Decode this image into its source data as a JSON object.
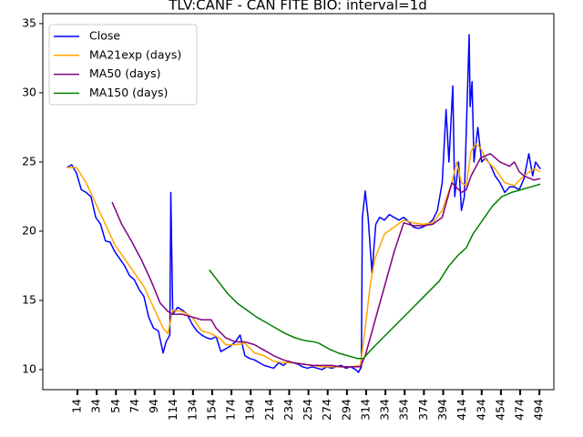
{
  "chart_data": {
    "type": "line",
    "title": "TLV:CANF - CAN FITE BIO: interval=1d",
    "xlim": [
      -22,
      509
    ],
    "ylim": [
      8.55,
      35.72
    ],
    "xticks": [
      14,
      34,
      54,
      74,
      94,
      114,
      134,
      154,
      174,
      194,
      214,
      234,
      254,
      274,
      294,
      314,
      334,
      354,
      374,
      394,
      414,
      434,
      454,
      474,
      494
    ],
    "yticks": [
      10,
      15,
      20,
      25,
      30,
      35
    ],
    "legend": "upper left",
    "series": [
      {
        "name": "Close",
        "color": "#0000ff",
        "x": [
          3,
          8,
          13,
          18,
          23,
          28,
          33,
          38,
          43,
          48,
          53,
          58,
          63,
          68,
          73,
          78,
          83,
          88,
          93,
          98,
          103,
          106,
          110,
          111,
          113,
          118,
          123,
          128,
          133,
          138,
          143,
          148,
          153,
          158,
          163,
          168,
          173,
          178,
          183,
          188,
          193,
          198,
          203,
          208,
          213,
          218,
          223,
          228,
          233,
          238,
          243,
          248,
          253,
          258,
          263,
          268,
          273,
          278,
          283,
          288,
          293,
          298,
          303,
          306,
          309,
          310,
          313,
          316,
          320,
          324,
          328,
          333,
          338,
          343,
          348,
          353,
          358,
          363,
          368,
          373,
          378,
          383,
          388,
          393,
          397,
          400,
          404,
          406,
          410,
          413,
          416,
          421,
          422,
          424,
          426,
          430,
          434,
          438,
          443,
          448,
          453,
          458,
          463,
          468,
          473,
          478,
          483,
          487,
          490,
          495
        ],
        "values": [
          24.6,
          24.8,
          24.2,
          23,
          22.8,
          22.5,
          21,
          20.5,
          19.3,
          19.2,
          18.5,
          18,
          17.5,
          16.8,
          16.5,
          15.8,
          15.3,
          13.8,
          13,
          12.8,
          11.2,
          12,
          12.5,
          22.8,
          14,
          14.5,
          14.3,
          14,
          13.3,
          12.8,
          12.5,
          12.3,
          12.2,
          12.4,
          11.3,
          11.5,
          11.7,
          12,
          12.5,
          11,
          10.8,
          10.7,
          10.5,
          10.3,
          10.2,
          10.1,
          10.5,
          10.3,
          10.6,
          10.5,
          10.4,
          10.2,
          10.1,
          10.2,
          10.1,
          10,
          10.2,
          10.1,
          10.2,
          10.3,
          10.1,
          10.2,
          10,
          9.8,
          10.2,
          21,
          22.9,
          21,
          17,
          20.5,
          21,
          20.8,
          21.2,
          21,
          20.8,
          21,
          20.7,
          20.3,
          20.2,
          20.3,
          20.5,
          20.8,
          21.5,
          23.5,
          28.8,
          25,
          30.5,
          22.5,
          25,
          21.5,
          22.5,
          34.2,
          29,
          30.8,
          25,
          27.5,
          25,
          25.3,
          24.8,
          24,
          23.5,
          22.8,
          23.2,
          23.2,
          23,
          23.8,
          25.6,
          24,
          25,
          24.5
        ]
      },
      {
        "name": "MA21exp (days)",
        "color": "#ffa500",
        "x": [
          3,
          13,
          23,
          33,
          43,
          53,
          63,
          73,
          83,
          93,
          103,
          108,
          113,
          123,
          133,
          143,
          153,
          163,
          168,
          178,
          188,
          198,
          208,
          218,
          228,
          238,
          248,
          258,
          268,
          278,
          288,
          298,
          308,
          313,
          318,
          323,
          333,
          343,
          353,
          363,
          373,
          383,
          393,
          403,
          408,
          413,
          418,
          423,
          428,
          433,
          438,
          448,
          458,
          468,
          478,
          488,
          495
        ],
        "values": [
          24.6,
          24.6,
          23.5,
          22,
          20.5,
          19,
          18,
          17,
          16,
          14.5,
          13,
          12.6,
          14.3,
          14.2,
          13.8,
          12.8,
          12.6,
          12.2,
          11.8,
          11.8,
          11.9,
          11.2,
          11,
          10.6,
          10.5,
          10.5,
          10.4,
          10.3,
          10.2,
          10.2,
          10.2,
          10.2,
          10.3,
          13,
          16,
          18,
          19.8,
          20.3,
          20.8,
          20.6,
          20.5,
          20.6,
          21.5,
          23.5,
          25,
          23.5,
          23.3,
          25.8,
          26.3,
          26,
          25.2,
          24.5,
          23.5,
          23.3,
          24,
          24.5,
          24.3
        ]
      },
      {
        "name": "MA50 (days)",
        "color": "#800080",
        "x": [
          50,
          60,
          70,
          80,
          90,
          100,
          108,
          113,
          123,
          133,
          143,
          153,
          158,
          168,
          178,
          188,
          198,
          208,
          218,
          228,
          238,
          248,
          258,
          268,
          278,
          288,
          298,
          308,
          313,
          323,
          333,
          343,
          353,
          363,
          373,
          383,
          393,
          403,
          413,
          418,
          423,
          433,
          443,
          453,
          463,
          468,
          473,
          478,
          488,
          495
        ],
        "values": [
          22.1,
          20.5,
          19.3,
          18,
          16.5,
          14.8,
          14.2,
          14,
          14,
          13.8,
          13.6,
          13.6,
          13,
          12.3,
          12,
          12,
          11.8,
          11.4,
          11,
          10.7,
          10.5,
          10.4,
          10.3,
          10.3,
          10.3,
          10.2,
          10.2,
          10.2,
          11,
          13.5,
          16,
          18.5,
          20.6,
          20.4,
          20.4,
          20.5,
          21,
          23.5,
          22.8,
          23,
          24,
          25.3,
          25.6,
          25,
          24.7,
          25,
          24.3,
          24,
          23.7,
          23.8
        ]
      },
      {
        "name": "MA150 (days)",
        "color": "#008000",
        "x": [
          151,
          160,
          170,
          180,
          190,
          200,
          210,
          220,
          230,
          240,
          250,
          260,
          265,
          275,
          285,
          295,
          305,
          311,
          320,
          330,
          340,
          350,
          360,
          370,
          380,
          390,
          400,
          410,
          418,
          425,
          435,
          445,
          455,
          465,
          475,
          485,
          495
        ],
        "values": [
          17.2,
          16.4,
          15.5,
          14.8,
          14.3,
          13.8,
          13.4,
          13,
          12.6,
          12.3,
          12.1,
          12,
          11.9,
          11.5,
          11.2,
          11,
          10.8,
          10.8,
          11.5,
          12.2,
          12.9,
          13.6,
          14.3,
          15,
          15.7,
          16.4,
          17.5,
          18.3,
          18.8,
          19.8,
          20.8,
          21.8,
          22.5,
          22.8,
          23,
          23.2,
          23.4
        ]
      }
    ]
  }
}
